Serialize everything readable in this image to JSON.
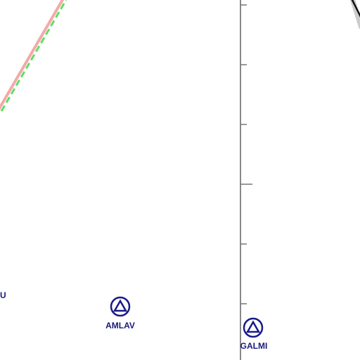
{
  "waypoints": [
    {
      "label": "U"
    },
    {
      "label": "AMLAV"
    },
    {
      "label": "GALMI"
    }
  ]
}
